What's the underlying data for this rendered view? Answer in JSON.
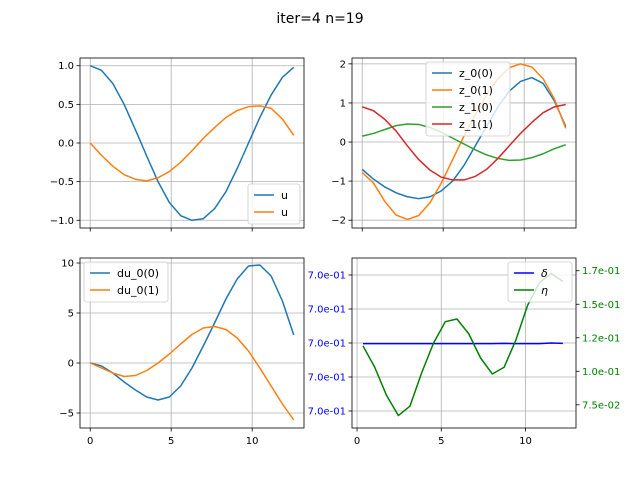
{
  "figure": {
    "suptitle": "iter=4 n=19"
  },
  "chart_data": [
    {
      "id": "top-left",
      "type": "line",
      "xlim": [
        -0.63,
        13.2
      ],
      "ylim": [
        -1.1,
        1.1
      ],
      "xticks": [
        0,
        5,
        10
      ],
      "xtick_labels": [
        "",
        "",
        ""
      ],
      "yticks": [
        -1.0,
        -0.5,
        0.0,
        0.5,
        1.0
      ],
      "ytick_labels": [
        "−1.0",
        "−0.5",
        "0.0",
        "0.5",
        "1.0"
      ],
      "grid": true,
      "legend": "lower-right",
      "series": [
        {
          "name": "u",
          "color": "#1f77b4",
          "x": [
            0,
            0.698,
            1.396,
            2.094,
            2.793,
            3.491,
            4.189,
            4.887,
            5.585,
            6.283,
            6.981,
            7.679,
            8.378,
            9.076,
            9.774,
            10.472,
            11.17,
            11.868,
            12.566
          ],
          "y": [
            1.0,
            0.94,
            0.77,
            0.5,
            0.17,
            -0.17,
            -0.5,
            -0.77,
            -0.94,
            -1.0,
            -0.98,
            -0.85,
            -0.63,
            -0.33,
            0.0,
            0.33,
            0.62,
            0.85,
            0.98
          ]
        },
        {
          "name": "u",
          "color": "#ff7f0e",
          "x": [
            0,
            0.698,
            1.396,
            2.094,
            2.793,
            3.491,
            4.189,
            4.887,
            5.585,
            6.283,
            6.981,
            7.679,
            8.378,
            9.076,
            9.774,
            10.472,
            11.17,
            11.868,
            12.566
          ],
          "y": [
            0.0,
            -0.16,
            -0.3,
            -0.41,
            -0.47,
            -0.49,
            -0.45,
            -0.37,
            -0.25,
            -0.1,
            0.06,
            0.2,
            0.33,
            0.42,
            0.47,
            0.48,
            0.45,
            0.31,
            0.1
          ]
        }
      ]
    },
    {
      "id": "top-right",
      "type": "line",
      "xlim": [
        -0.63,
        13.2
      ],
      "ylim": [
        -2.2,
        2.15
      ],
      "xticks": [
        0,
        5,
        10
      ],
      "xtick_labels": [
        "",
        "",
        ""
      ],
      "yticks": [
        -2,
        -1,
        0,
        1,
        2
      ],
      "ytick_labels": [
        "−2",
        "−1",
        "0",
        "1",
        "2"
      ],
      "grid": true,
      "legend": "upper-center",
      "series": [
        {
          "name": "z_0(0)",
          "color": "#1f77b4",
          "x": [
            0,
            0.698,
            1.396,
            2.094,
            2.793,
            3.491,
            4.189,
            4.887,
            5.585,
            6.283,
            6.981,
            7.679,
            8.378,
            9.076,
            9.774,
            10.472,
            11.17,
            11.868,
            12.566
          ],
          "y": [
            -0.7,
            -0.95,
            -1.15,
            -1.3,
            -1.4,
            -1.45,
            -1.4,
            -1.25,
            -1.0,
            -0.6,
            -0.1,
            0.4,
            0.9,
            1.3,
            1.55,
            1.65,
            1.5,
            1.05,
            0.4
          ]
        },
        {
          "name": "z_0(1)",
          "color": "#ff7f0e",
          "x": [
            0,
            0.698,
            1.396,
            2.094,
            2.793,
            3.491,
            4.189,
            4.887,
            5.585,
            6.283,
            6.981,
            7.679,
            8.378,
            9.076,
            9.774,
            10.472,
            11.17,
            11.868,
            12.566
          ],
          "y": [
            -0.78,
            -1.05,
            -1.52,
            -1.87,
            -1.98,
            -1.88,
            -1.55,
            -1.05,
            -0.45,
            0.15,
            0.7,
            1.2,
            1.62,
            1.9,
            2.0,
            1.92,
            1.62,
            1.1,
            0.35
          ]
        },
        {
          "name": "z_1(0)",
          "color": "#2ca02c",
          "x": [
            0,
            0.698,
            1.396,
            2.094,
            2.793,
            3.491,
            4.189,
            4.887,
            5.585,
            6.283,
            6.981,
            7.679,
            8.378,
            9.076,
            9.774,
            10.472,
            11.17,
            11.868,
            12.566
          ],
          "y": [
            0.15,
            0.22,
            0.32,
            0.42,
            0.46,
            0.45,
            0.37,
            0.25,
            0.1,
            -0.05,
            -0.2,
            -0.33,
            -0.42,
            -0.47,
            -0.46,
            -0.4,
            -0.3,
            -0.17,
            -0.07
          ]
        },
        {
          "name": "z_1(1)",
          "color": "#d62728",
          "x": [
            0,
            0.698,
            1.396,
            2.094,
            2.793,
            3.491,
            4.189,
            4.887,
            5.585,
            6.283,
            6.981,
            7.679,
            8.378,
            9.076,
            9.774,
            10.472,
            11.17,
            11.868,
            12.566
          ],
          "y": [
            0.9,
            0.8,
            0.58,
            0.28,
            -0.1,
            -0.45,
            -0.72,
            -0.9,
            -0.97,
            -0.97,
            -0.88,
            -0.7,
            -0.42,
            -0.1,
            0.22,
            0.5,
            0.75,
            0.9,
            0.96
          ]
        }
      ]
    },
    {
      "id": "bottom-left",
      "type": "line",
      "xlim": [
        -0.63,
        13.2
      ],
      "ylim": [
        -6.5,
        10.5
      ],
      "xticks": [
        0,
        5,
        10
      ],
      "xtick_labels": [
        "0",
        "5",
        "10"
      ],
      "yticks": [
        -5,
        0,
        5,
        10
      ],
      "ytick_labels": [
        "−5",
        "0",
        "5",
        "10"
      ],
      "grid": true,
      "legend": "upper-left",
      "series": [
        {
          "name": "du_0(0)",
          "color": "#1f77b4",
          "x": [
            0,
            0.698,
            1.396,
            2.094,
            2.793,
            3.491,
            4.189,
            4.887,
            5.585,
            6.283,
            6.981,
            7.679,
            8.378,
            9.076,
            9.774,
            10.472,
            11.17,
            11.868,
            12.566
          ],
          "y": [
            0.0,
            -0.3,
            -1.0,
            -1.9,
            -2.7,
            -3.4,
            -3.7,
            -3.4,
            -2.3,
            -0.5,
            1.7,
            4.0,
            6.4,
            8.4,
            9.7,
            9.8,
            8.7,
            6.2,
            2.8
          ]
        },
        {
          "name": "du_0(1)",
          "color": "#ff7f0e",
          "x": [
            0,
            0.698,
            1.396,
            2.094,
            2.793,
            3.491,
            4.189,
            4.887,
            5.585,
            6.283,
            6.981,
            7.679,
            8.378,
            9.076,
            9.774,
            10.472,
            11.17,
            11.868,
            12.566
          ],
          "y": [
            0.0,
            -0.5,
            -1.0,
            -1.35,
            -1.25,
            -0.75,
            0.0,
            0.9,
            1.9,
            2.85,
            3.5,
            3.65,
            3.35,
            2.5,
            1.2,
            -0.5,
            -2.3,
            -4.1,
            -5.7
          ]
        }
      ]
    },
    {
      "id": "bottom-right",
      "type": "line",
      "xlim": [
        -0.3,
        13.0
      ],
      "ylim": [
        -2.5,
        2.5
      ],
      "xticks": [
        0,
        5,
        10
      ],
      "xtick_labels": [
        "0",
        "5",
        "10"
      ],
      "yticks_left": [
        -2,
        -1,
        0,
        1,
        2
      ],
      "ytick_labels_left": [
        "7.0e-01",
        "7.0e-01",
        "7.0e-01",
        "7.0e-01",
        "7.0e-01"
      ],
      "left_label_color": "#0000ff",
      "yticks_right": [
        0.075,
        0.1,
        0.125,
        0.15,
        0.175
      ],
      "ytick_labels_right": [
        "7.5e-02",
        "1.0e-01",
        "1.2e-01",
        "1.5e-01",
        "1.7e-01"
      ],
      "right_label_color": "#008000",
      "ylim_right": [
        0.0577,
        0.1845
      ],
      "grid": true,
      "legend": "upper-right",
      "series": [
        {
          "name": "δ",
          "color": "#0000ff",
          "axis": "left",
          "x": [
            0.35,
            1.05,
            1.75,
            2.45,
            3.14,
            3.84,
            4.54,
            5.24,
            5.93,
            6.63,
            7.33,
            8.03,
            8.73,
            9.42,
            10.12,
            10.82,
            11.52,
            12.22
          ],
          "y": [
            -0.02,
            -0.02,
            -0.02,
            -0.02,
            -0.02,
            -0.02,
            -0.02,
            -0.02,
            -0.02,
            -0.02,
            -0.02,
            -0.02,
            -0.01,
            -0.02,
            -0.02,
            -0.02,
            0.0,
            -0.01
          ]
        },
        {
          "name": "η",
          "color": "#008000",
          "axis": "right",
          "x": [
            0.35,
            1.05,
            1.75,
            2.45,
            3.14,
            3.84,
            4.54,
            5.24,
            5.93,
            6.63,
            7.33,
            8.03,
            8.73,
            9.42,
            10.12,
            10.82,
            11.52,
            12.22
          ],
          "y": [
            0.119,
            0.103,
            0.082,
            0.067,
            0.074,
            0.099,
            0.121,
            0.137,
            0.139,
            0.128,
            0.11,
            0.098,
            0.103,
            0.123,
            0.149,
            0.166,
            0.173,
            0.167
          ]
        }
      ]
    }
  ]
}
